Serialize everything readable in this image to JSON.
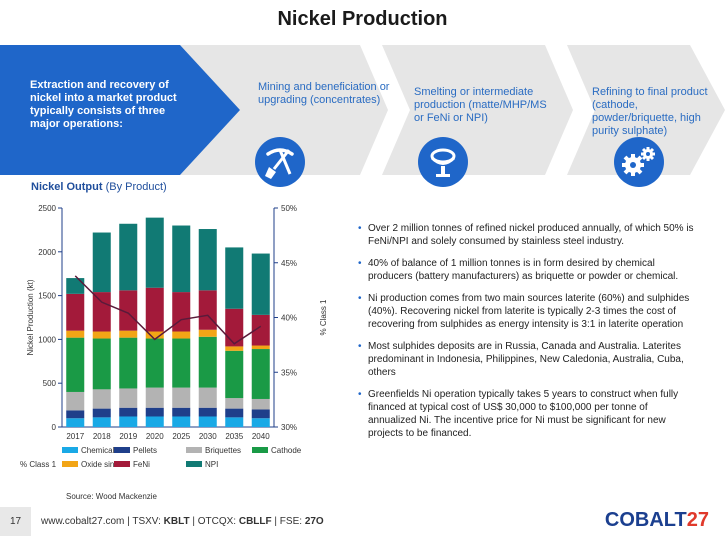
{
  "title": "Nickel Production",
  "process": {
    "intro": "Extraction and recovery of nickel into a market product typically consists of three major operations:",
    "steps": [
      {
        "label": "Mining and beneficiation or upgrading (concentrates)",
        "icon": "pickaxe-shovel-icon"
      },
      {
        "label": "Smelting or intermediate production (matte/MHP/MS or FeNi or NPI)",
        "icon": "ladle-icon"
      },
      {
        "label": "Refining to final product (cathode, powder/briquette, high purity sulphate)",
        "icon": "gears-icon"
      }
    ]
  },
  "chart_heading": {
    "bold": "Nickel Output",
    "normal": " (By Product)"
  },
  "chart_data": {
    "type": "bar",
    "stacked": true,
    "categories": [
      "2017",
      "2018",
      "2019",
      "2020",
      "2025",
      "2030",
      "2035",
      "2040"
    ],
    "ylabel": "Nickel Production (kt)",
    "y2label": "% Class 1",
    "ylim": [
      0,
      2500
    ],
    "yticks": [
      0,
      500,
      1000,
      1500,
      2000,
      2500
    ],
    "y2lim": [
      30,
      50
    ],
    "y2ticks": [
      "30%",
      "35%",
      "40%",
      "45%",
      "50%"
    ],
    "y2tick_values": [
      30,
      35,
      40,
      45,
      50
    ],
    "series": [
      {
        "name": "Chemicals",
        "color": "#19a9e6",
        "values": [
          100,
          110,
          120,
          120,
          120,
          120,
          110,
          100
        ]
      },
      {
        "name": "Pellets",
        "color": "#1f3f8a",
        "values": [
          90,
          100,
          100,
          100,
          100,
          100,
          100,
          100
        ]
      },
      {
        "name": "Briquettes",
        "color": "#b3b3b3",
        "values": [
          210,
          220,
          220,
          230,
          230,
          230,
          120,
          120
        ]
      },
      {
        "name": "Cathode",
        "color": "#1a9a46",
        "values": [
          620,
          580,
          580,
          560,
          560,
          580,
          540,
          570
        ]
      },
      {
        "name": "Oxide sinter",
        "color": "#f2a516",
        "values": [
          80,
          80,
          80,
          80,
          80,
          80,
          50,
          40
        ]
      },
      {
        "name": "FeNi",
        "color": "#a31a3a",
        "values": [
          420,
          450,
          460,
          500,
          450,
          450,
          430,
          350
        ]
      },
      {
        "name": "NPI",
        "color": "#117a74",
        "values": [
          180,
          680,
          760,
          800,
          760,
          700,
          700,
          700
        ]
      }
    ],
    "line": {
      "name": "% Class 1",
      "color": "#5a1a3a",
      "values": [
        43.8,
        41.4,
        40.4,
        38.0,
        39.8,
        40.2,
        37.6,
        39.2
      ]
    }
  },
  "source": "Source: Wood Mackenzie",
  "bullets": [
    "Over 2 million tonnes of refined nickel produced annually, of which 50% is FeNi/NPI and solely consumed by stainless steel industry.",
    "40% of balance of 1 million tonnes is in form desired by chemical producers (battery manufacturers) as briquette or powder or chemical.",
    "Ni production comes from two main sources laterite (60%) and sulphides (40%).  Recovering nickel from laterite is typically 2-3 times the cost of recovering from sulphides as energy intensity is 3:1 in laterite operation",
    "Most sulphides deposits are in Russia, Canada and Australia. Laterites predominant in Indonesia, Philippines, New Caledonia, Australia, Cuba, others",
    "Greenfields Ni operation typically takes 5 years to construct when fully financed at typical cost of US$ 30,000 to $100,000 per tonne of annualized Ni.  The incentive price for Ni must be significant for new projects to be financed."
  ],
  "footer": {
    "page": "17",
    "site": "www.cobalt27.com  |  TSXV: ",
    "tsxv": "KBLT",
    "otc_label": "  |  OTCQX: ",
    "otc": "CBLLF",
    "fse_label": "  |  FSE: ",
    "fse": "27O",
    "logo_main": "COBALT",
    "logo_num": "27"
  }
}
